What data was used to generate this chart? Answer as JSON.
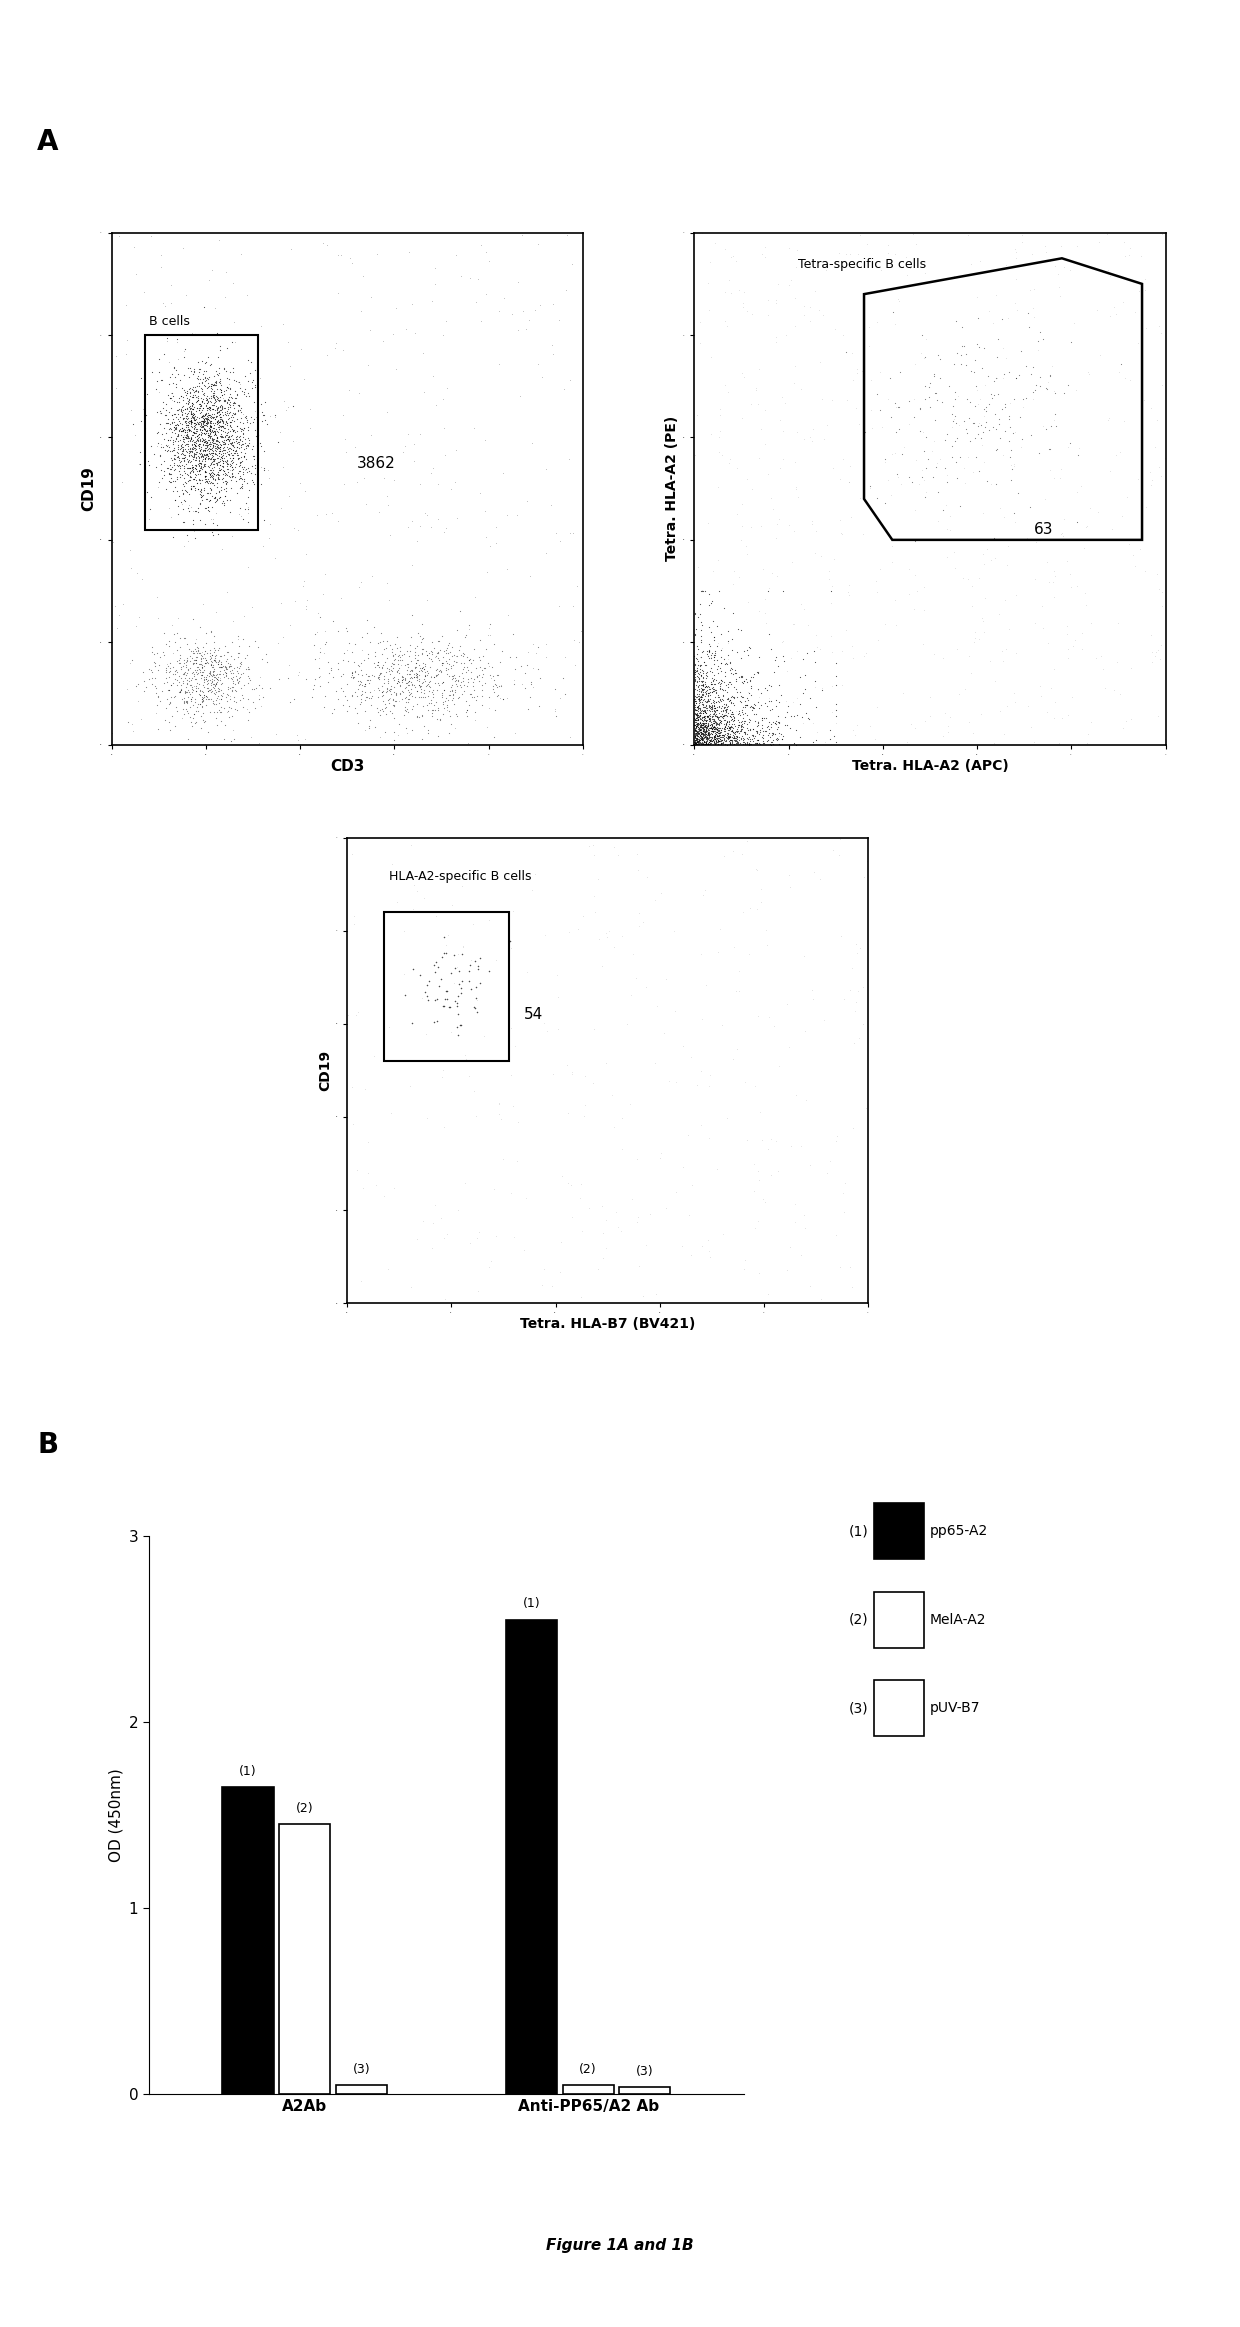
{
  "panel_A_label": "A",
  "panel_B_label": "B",
  "plot1_xlabel": "CD3",
  "plot1_ylabel": "CD19",
  "plot1_gate_label": "B cells",
  "plot1_count": "3862",
  "plot2_xlabel": "Tetra. HLA-A2 (APC)",
  "plot2_ylabel": "Tetra. HLA-A2 (PE)",
  "plot2_gate_label": "Tetra-specific B cells",
  "plot2_count": "63",
  "plot3_xlabel": "Tetra. HLA-B7 (BV421)",
  "plot3_ylabel": "CD19",
  "plot3_gate_label": "HLA-A2-specific B cells",
  "plot3_count": "54",
  "bar_groups": [
    "A2Ab",
    "Anti-PP65/A2 Ab"
  ],
  "bar_series": [
    {
      "label": "pp65-A2",
      "color": "#000000",
      "values": [
        1.65,
        2.55
      ]
    },
    {
      "label": "MelA-A2",
      "color": "#ffffff",
      "values": [
        1.45,
        0.05
      ]
    },
    {
      "label": "pUV-B7",
      "color": "#ffffff",
      "values": [
        0.05,
        0.04
      ]
    }
  ],
  "bar_series_labels": [
    "(1)",
    "(2)",
    "(3)"
  ],
  "bar_ylabel": "OD (450nm)",
  "bar_ylim": [
    0,
    3.0
  ],
  "bar_yticks": [
    0,
    1,
    2,
    3
  ],
  "figure_caption": "Figure 1A and 1B",
  "legend_entries": [
    {
      "num": "(1)",
      "label": "pp65-A2",
      "facecolor": "#000000",
      "edgecolor": "#000000"
    },
    {
      "num": "(2)",
      "label": "MelA-A2",
      "facecolor": "#ffffff",
      "edgecolor": "#000000"
    },
    {
      "num": "(3)",
      "label": "pUV-B7",
      "facecolor": "#ffffff",
      "edgecolor": "#000000"
    }
  ]
}
